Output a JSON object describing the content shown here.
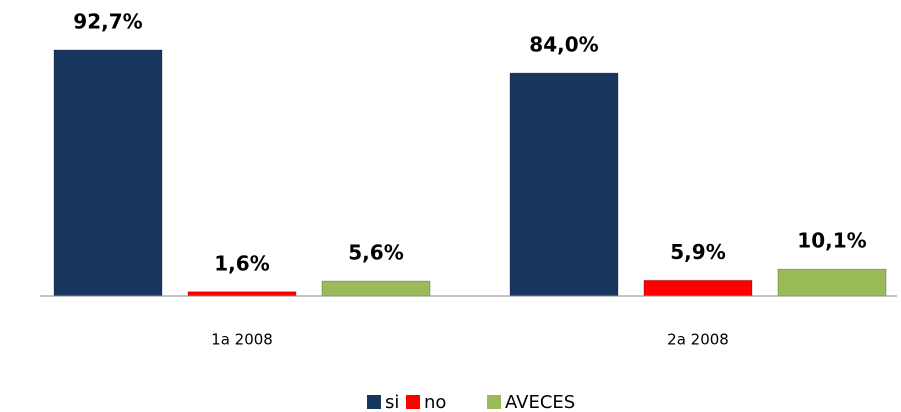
{
  "chart_data": {
    "type": "bar",
    "categories": [
      "1a 2008",
      "2a 2008"
    ],
    "series": [
      {
        "name": "si",
        "color": "#17375e",
        "values": [
          92.7,
          84.0
        ],
        "value_labels": [
          "92,7%",
          "84,0%"
        ]
      },
      {
        "name": "no",
        "color": "#ff0000",
        "values": [
          1.6,
          5.9
        ],
        "value_labels": [
          "1,6%",
          "5,9%"
        ]
      },
      {
        "name": "AVECES",
        "color": "#9bbb59",
        "values": [
          5.6,
          10.1
        ],
        "value_labels": [
          "5,6%",
          "10,1%"
        ]
      }
    ],
    "legend": "bottom"
  }
}
